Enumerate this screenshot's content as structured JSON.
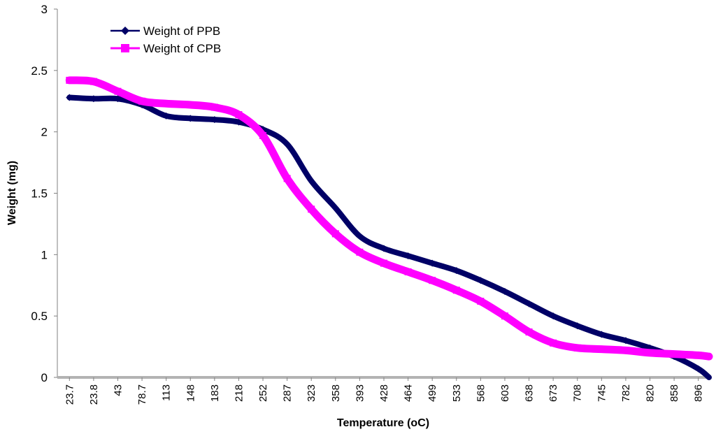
{
  "chart_data": {
    "type": "line",
    "xlabel": "Temperature (oC)",
    "ylabel": "Weight (mg)",
    "ylim": [
      0,
      3
    ],
    "yticks": [
      "0",
      "0.5",
      "1",
      "1.5",
      "2",
      "2.5",
      "3"
    ],
    "grid": false,
    "legend_position": "top-left",
    "categories": [
      "23.7",
      "23.8",
      "43",
      "78.7",
      "113",
      "148",
      "183",
      "218",
      "252",
      "287",
      "323",
      "358",
      "393",
      "428",
      "464",
      "499",
      "533",
      "568",
      "603",
      "638",
      "673",
      "708",
      "745",
      "782",
      "820",
      "858",
      "896"
    ],
    "series": [
      {
        "name": "Weight of PPB",
        "color": "#000066",
        "marker": "diamond",
        "values": [
          2.28,
          2.27,
          2.27,
          2.22,
          2.13,
          2.11,
          2.1,
          2.08,
          2.02,
          1.9,
          1.6,
          1.38,
          1.15,
          1.05,
          0.99,
          0.93,
          0.87,
          0.79,
          0.7,
          0.6,
          0.5,
          0.42,
          0.35,
          0.3,
          0.24,
          0.17,
          0.07
        ]
      },
      {
        "name": "Weight of CPB",
        "color": "#ff00ff",
        "marker": "square",
        "values": [
          2.42,
          2.41,
          2.33,
          2.25,
          2.23,
          2.22,
          2.2,
          2.14,
          1.97,
          1.62,
          1.37,
          1.17,
          1.02,
          0.93,
          0.86,
          0.79,
          0.71,
          0.62,
          0.5,
          0.37,
          0.28,
          0.24,
          0.23,
          0.22,
          0.2,
          0.19,
          0.18
        ]
      }
    ],
    "tail": {
      "PPB": 0.0,
      "CPB": 0.17
    }
  }
}
